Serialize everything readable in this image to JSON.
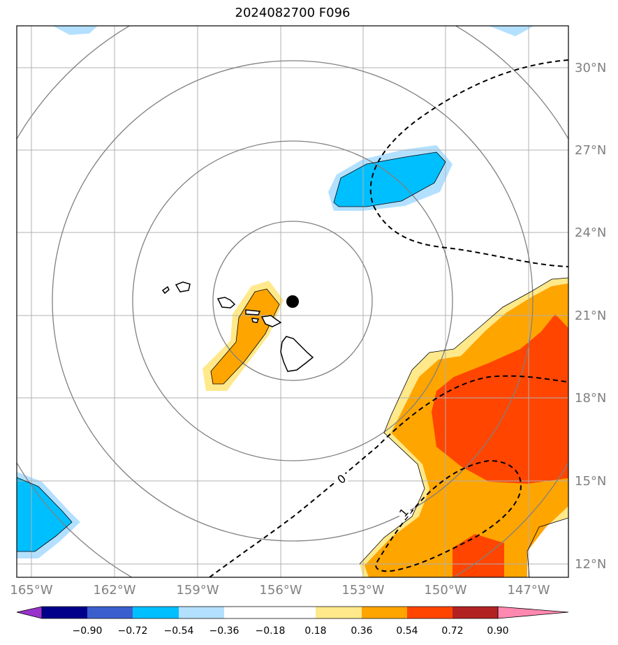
{
  "title": "2024082700 F096",
  "map": {
    "lon_labels": [
      "165°W",
      "162°W",
      "159°W",
      "156°W",
      "153°W",
      "150°W",
      "147°W"
    ],
    "lat_labels": [
      "30°N",
      "27°N",
      "24°N",
      "21°N",
      "18°N",
      "15°N",
      "12°N"
    ],
    "contour_labels": [
      "0",
      "1"
    ],
    "center_marker": "storm-center"
  },
  "colorbar": {
    "ticks": [
      "−0.90",
      "−0.72",
      "−0.54",
      "−0.36",
      "−0.18",
      "0.18",
      "0.36",
      "0.54",
      "0.72",
      "0.90"
    ],
    "colors": [
      "#9932CC",
      "#00008B",
      "#3A5FCD",
      "#00BFFF",
      "#B3E0FF",
      "#FFFFFF",
      "#FFE98A",
      "#FFA500",
      "#FF4500",
      "#B22222",
      "#FF88B0"
    ]
  }
}
